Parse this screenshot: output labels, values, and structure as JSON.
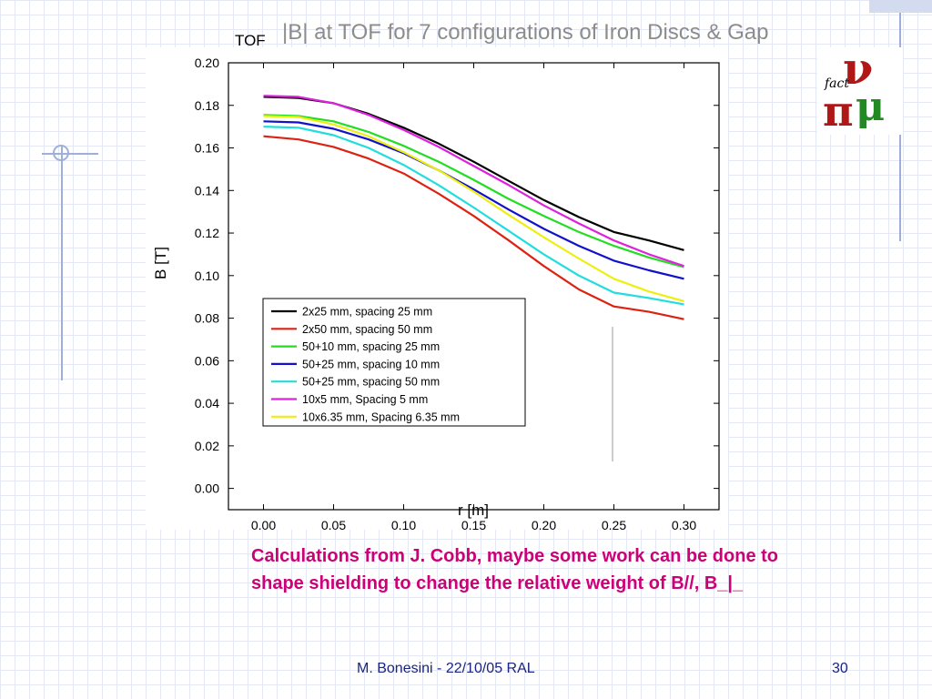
{
  "slide": {
    "title": "|B| at TOF for 7 configurations of Iron Discs & Gap",
    "tof_label": "TOF",
    "caption": "Calculations from J. Cobb, maybe some work can be done to shape shielding to change the relative weight of B//, B_|_",
    "footer": "M. Bonesini - 22/10/05 RAL",
    "page_number": "30"
  },
  "logo": {
    "text_fact": "fact",
    "colors": {
      "nu": "#b01818",
      "mu": "#238a23",
      "pi": "#b01818",
      "fact": "#000000"
    }
  },
  "chart_data": {
    "type": "line",
    "title": "",
    "xlabel": "r [m]",
    "ylabel": "B [T]",
    "xlim": [
      -0.025,
      0.325
    ],
    "ylim": [
      -0.01,
      0.2
    ],
    "xticks": [
      "0.00",
      "0.05",
      "0.10",
      "0.15",
      "0.20",
      "0.25",
      "0.30"
    ],
    "yticks": [
      "0.00",
      "0.02",
      "0.04",
      "0.06",
      "0.08",
      "0.10",
      "0.12",
      "0.14",
      "0.16",
      "0.18",
      "0.20"
    ],
    "grid": false,
    "legend_position": "lower-left",
    "x": [
      0.0,
      0.025,
      0.05,
      0.075,
      0.1,
      0.125,
      0.15,
      0.175,
      0.2,
      0.225,
      0.25,
      0.275,
      0.3
    ],
    "series": [
      {
        "name": "2x25 mm, spacing 25 mm",
        "color": "#000000",
        "values": [
          0.184,
          0.1835,
          0.181,
          0.176,
          0.1695,
          0.162,
          0.1535,
          0.1445,
          0.1355,
          0.1275,
          0.1205,
          0.1165,
          0.112
        ]
      },
      {
        "name": "2x50 mm, spacing 50 mm",
        "color": "#dd2211",
        "values": [
          0.1655,
          0.164,
          0.1605,
          0.155,
          0.148,
          0.1385,
          0.128,
          0.1165,
          0.1045,
          0.0935,
          0.0855,
          0.083,
          0.0795
        ]
      },
      {
        "name": "50+10 mm, spacing 25 mm",
        "color": "#22dd22",
        "values": [
          0.1755,
          0.175,
          0.1725,
          0.1675,
          0.161,
          0.1535,
          0.145,
          0.136,
          0.128,
          0.1205,
          0.114,
          0.1085,
          0.104
        ]
      },
      {
        "name": "50+25 mm, spacing 10 mm",
        "color": "#1111cc",
        "values": [
          0.1725,
          0.172,
          0.169,
          0.164,
          0.1575,
          0.1495,
          0.1405,
          0.131,
          0.122,
          0.114,
          0.107,
          0.1025,
          0.0985
        ]
      },
      {
        "name": "50+25 mm, spacing 50 mm",
        "color": "#22dddd",
        "values": [
          0.17,
          0.1695,
          0.166,
          0.16,
          0.152,
          0.1425,
          0.132,
          0.121,
          0.11,
          0.1,
          0.092,
          0.0895,
          0.0865
        ]
      },
      {
        "name": "10x5 mm, Spacing 5 mm",
        "color": "#dd22dd",
        "values": [
          0.1845,
          0.184,
          0.181,
          0.1755,
          0.1685,
          0.1605,
          0.1515,
          0.1425,
          0.133,
          0.1245,
          0.1165,
          0.11,
          0.1045
        ]
      },
      {
        "name": "10x6.35 mm, Spacing 6.35 mm",
        "color": "#eeee11",
        "values": [
          0.175,
          0.1745,
          0.171,
          0.1655,
          0.158,
          0.1495,
          0.1395,
          0.1285,
          0.118,
          0.108,
          0.0985,
          0.0925,
          0.088
        ]
      }
    ]
  }
}
